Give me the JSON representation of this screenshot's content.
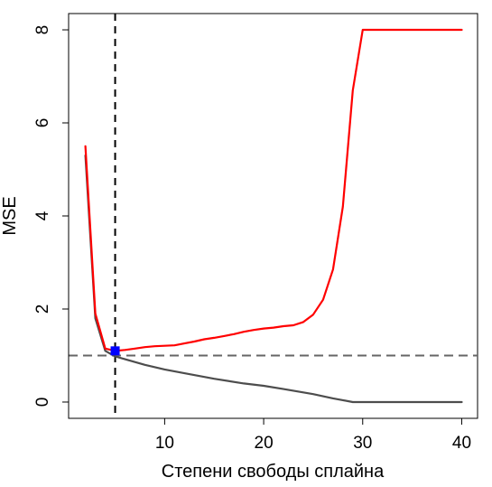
{
  "chart_data": {
    "type": "line",
    "title": "",
    "xlabel": "Степени свободы сплайна",
    "ylabel": "MSE",
    "xlim": [
      0.3,
      41.6
    ],
    "ylim": [
      -0.35,
      8.35
    ],
    "xticks": [
      10,
      20,
      30,
      40
    ],
    "yticks": [
      0,
      2,
      4,
      6,
      8
    ],
    "grid": false,
    "legend": "none",
    "series": [
      {
        "color": "#4d4d4d",
        "x": [
          2,
          3,
          4,
          5,
          6,
          8,
          10,
          12,
          15,
          18,
          20,
          22,
          25,
          27,
          28,
          29,
          30,
          35,
          40
        ],
        "y": [
          5.3,
          1.8,
          1.1,
          0.98,
          0.92,
          0.8,
          0.7,
          0.62,
          0.5,
          0.4,
          0.35,
          0.28,
          0.17,
          0.08,
          0.04,
          0.0,
          0.0,
          0.0,
          0.0
        ]
      },
      {
        "color": "#ff0000",
        "x": [
          2,
          3,
          4,
          5,
          6,
          7,
          8,
          9,
          10,
          11,
          12,
          13,
          14,
          15,
          16,
          17,
          18,
          19,
          20,
          21,
          22,
          23,
          24,
          25,
          26,
          27,
          28,
          29,
          30,
          31,
          35,
          40
        ],
        "y": [
          5.5,
          1.9,
          1.15,
          1.1,
          1.12,
          1.15,
          1.18,
          1.2,
          1.21,
          1.22,
          1.26,
          1.3,
          1.35,
          1.38,
          1.42,
          1.46,
          1.51,
          1.55,
          1.58,
          1.6,
          1.63,
          1.65,
          1.72,
          1.88,
          2.2,
          2.85,
          4.2,
          6.7,
          8.0,
          8.0,
          8.0,
          8.0
        ]
      }
    ],
    "annotations": {
      "selected_point": {
        "x": 5,
        "y": 1.1,
        "color": "#0000ff"
      },
      "vline_x": 5,
      "hline_y": 1.0
    }
  }
}
